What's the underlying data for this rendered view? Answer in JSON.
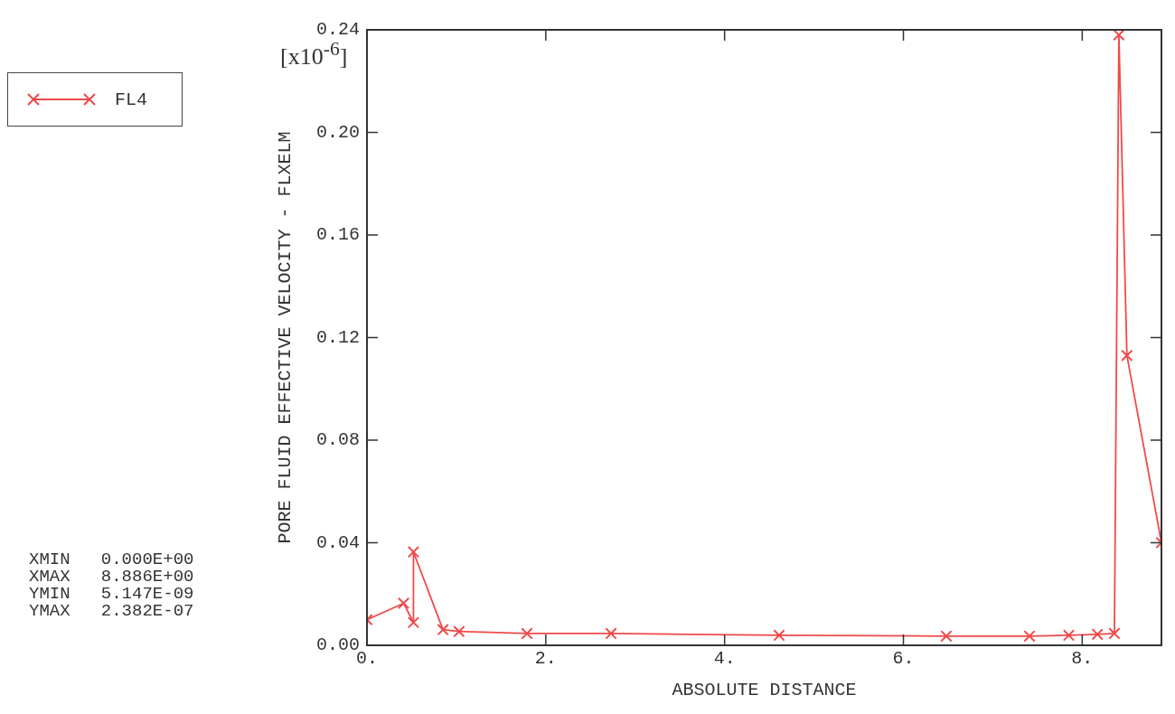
{
  "chart_data": {
    "type": "line",
    "xlabel": "ABSOLUTE DISTANCE",
    "ylabel": "PORE FLUID EFFECTIVE VELOCITY - FLXELM",
    "annotations": [
      "[x10$^{-6}$]",
      "XMIN   0.000E+00",
      "XMAX   8.886E+00",
      "YMIN   5.147E-09",
      "YMAX   2.382E-07"
    ],
    "series": [
      {
        "name": "FL4",
        "color": "#f04a4a",
        "x": [
          0,
          0.41,
          0.52,
          0.52,
          0.85,
          1.03,
          1.79,
          2.73,
          4.61,
          6.48,
          7.41,
          7.85,
          8.17,
          8.36,
          8.41,
          8.5,
          8.886
        ],
        "values": [
          0.01,
          0.0164,
          0.0089,
          0.0364,
          0.0061,
          0.0054,
          0.0046,
          0.0046,
          0.0039,
          0.0036,
          0.0036,
          0.0039,
          0.0043,
          0.0046,
          0.238,
          0.113,
          0.04
        ]
      }
    ],
    "xlim": [
      0,
      8.886
    ],
    "ylim": [
      0,
      0.24
    ],
    "xticks": [
      {
        "value": 0,
        "label": "0."
      },
      {
        "value": 2,
        "label": "2."
      },
      {
        "value": 4,
        "label": "4."
      },
      {
        "value": 6,
        "label": "6."
      },
      {
        "value": 8,
        "label": "8."
      }
    ],
    "yticks": [
      {
        "value": 0,
        "label": "0.00"
      },
      {
        "value": 0.04,
        "label": "0.04"
      },
      {
        "value": 0.08,
        "label": "0.08"
      },
      {
        "value": 0.12,
        "label": "0.12"
      },
      {
        "value": 0.16,
        "label": "0.16"
      },
      {
        "value": 0.2,
        "label": "0.20"
      },
      {
        "value": 0.24,
        "label": "0.24"
      }
    ],
    "grid": false,
    "legend": "top left",
    "marker": "cross",
    "line_style": "solid"
  }
}
